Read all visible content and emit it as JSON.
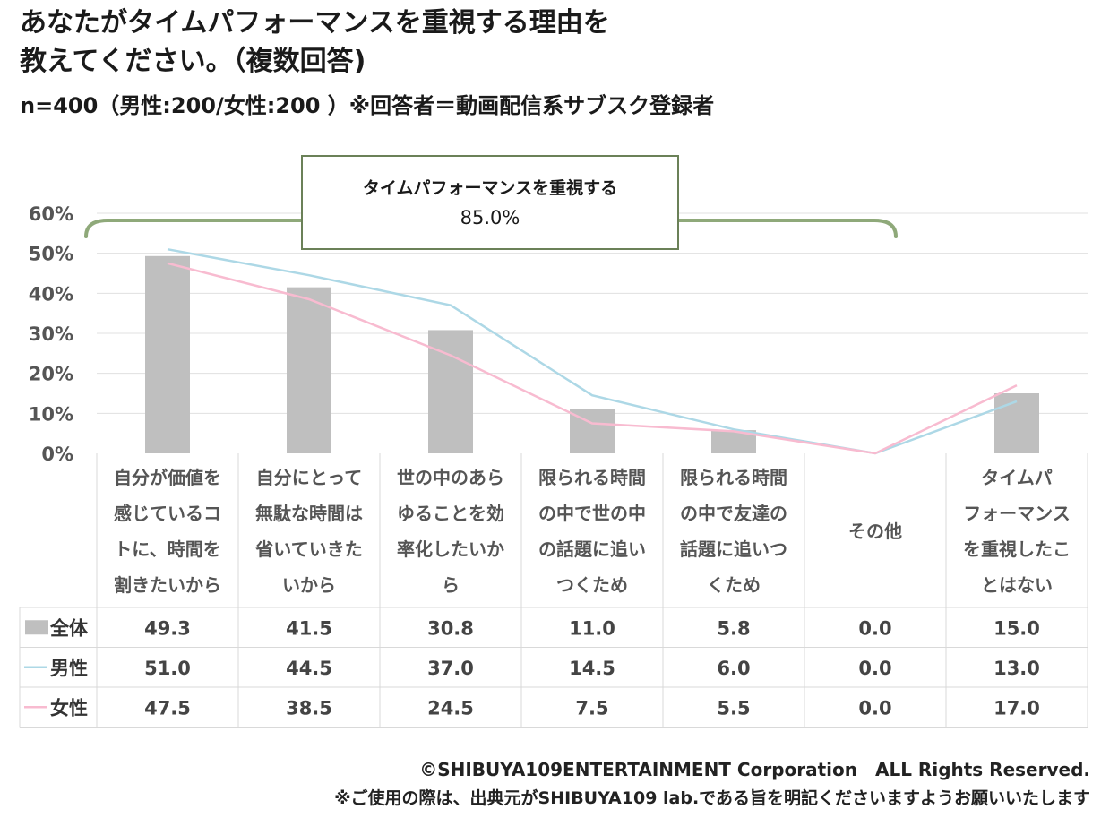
{
  "title_line1": "あなたがタイムパフォーマンスを重視する理由を",
  "title_line2": "教えてください。（複数回答)",
  "subtitle": "n=400（男性:200/女性:200 ）※回答者＝動画配信系サブスク登録者",
  "annotation": {
    "label": "タイムパフォーマンスを重視する",
    "value": "85.0%"
  },
  "chart_data": {
    "type": "bar",
    "ylim": [
      0,
      60
    ],
    "y_ticks": [
      "0%",
      "10%",
      "20%",
      "30%",
      "40%",
      "50%",
      "60%"
    ],
    "grid": true,
    "categories": [
      [
        "自分が価値を",
        "感じているコ",
        "トに、時間を",
        "割きたいから"
      ],
      [
        "自分にとって",
        "無駄な時間は",
        "省いていきた",
        "いから"
      ],
      [
        "世の中のあら",
        "ゆることを効",
        "率化したいか",
        "ら"
      ],
      [
        "限られる時間",
        "の中で世の中",
        "の話題に追い",
        "つくため"
      ],
      [
        "限られる時間",
        "の中で友達の",
        "話題に追いつ",
        "くため"
      ],
      [
        "その他"
      ],
      [
        "タイムパ",
        "フォーマンス",
        "を重視したこ",
        "とはない"
      ]
    ],
    "series": [
      {
        "name": "全体",
        "kind": "bar",
        "color": "#bfbfbf",
        "values": [
          49.3,
          41.5,
          30.8,
          11.0,
          5.8,
          0.0,
          15.0
        ],
        "labels": [
          "49.3",
          "41.5",
          "30.8",
          "11.0",
          "5.8",
          "0.0",
          "15.0"
        ]
      },
      {
        "name": "男性",
        "kind": "line",
        "color": "#add8e6",
        "values": [
          51.0,
          44.5,
          37.0,
          14.5,
          6.0,
          0.0,
          13.0
        ],
        "labels": [
          "51.0",
          "44.5",
          "37.0",
          "14.5",
          "6.0",
          "0.0",
          "13.0"
        ]
      },
      {
        "name": "女性",
        "kind": "line",
        "color": "#f8bbd0",
        "values": [
          47.5,
          38.5,
          24.5,
          7.5,
          5.5,
          0.0,
          17.0
        ],
        "labels": [
          "47.5",
          "38.5",
          "24.5",
          "7.5",
          "5.5",
          "0.0",
          "17.0"
        ]
      }
    ]
  },
  "footer": {
    "copyright": "©SHIBUYA109ENTERTAINMENT Corporation　ALL Rights Reserved.",
    "note": "※ご使用の際は、出典元がSHIBUYA109 lab.である旨を明記くださいますようお願いいたします"
  }
}
